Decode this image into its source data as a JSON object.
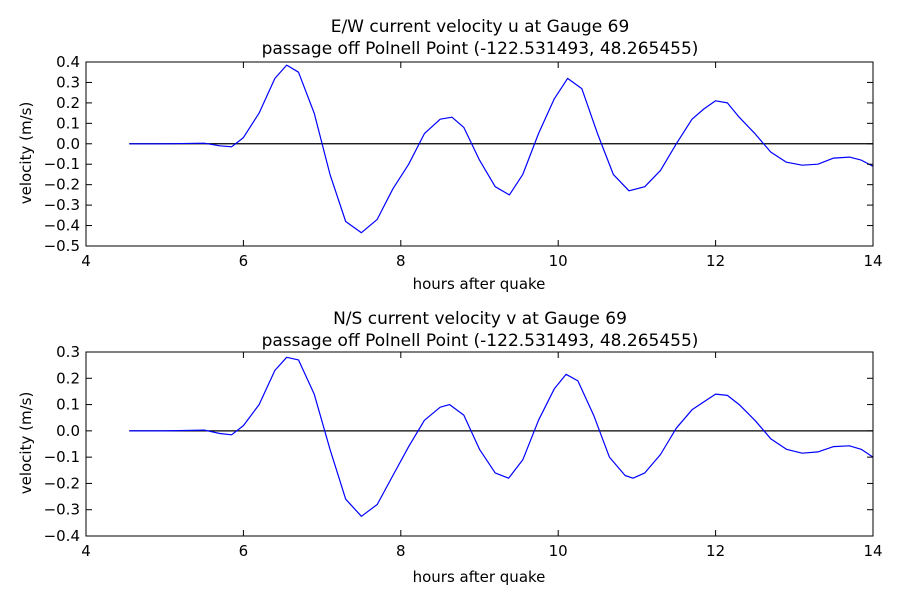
{
  "chart_data": [
    {
      "type": "line",
      "title_line1": "E/W current velocity u at Gauge 69",
      "title_line2": "passage off Polnell Point  (-122.531493, 48.265455)",
      "xlabel": "hours after quake",
      "ylabel": "velocity (m/s)",
      "xlim": [
        4,
        14
      ],
      "ylim": [
        -0.5,
        0.4
      ],
      "xticks": [
        "4",
        "6",
        "8",
        "10",
        "12",
        "14"
      ],
      "yticks": [
        "0.4",
        "0.3",
        "0.2",
        "0.1",
        "0.0",
        "−0.1",
        "−0.2",
        "−0.3",
        "−0.4",
        "−0.5"
      ],
      "ytick_values": [
        0.4,
        0.3,
        0.2,
        0.1,
        0.0,
        -0.1,
        -0.2,
        -0.3,
        -0.4,
        -0.5
      ],
      "grid": false,
      "reference_line": {
        "y": 0,
        "color": "#000000"
      },
      "series": [
        {
          "color": "#0000ff",
          "x": [
            4.55,
            5.0,
            5.5,
            5.7,
            5.85,
            6.0,
            6.2,
            6.4,
            6.55,
            6.7,
            6.9,
            7.1,
            7.3,
            7.5,
            7.7,
            7.9,
            8.1,
            8.3,
            8.5,
            8.65,
            8.8,
            9.0,
            9.2,
            9.38,
            9.55,
            9.75,
            9.95,
            10.12,
            10.3,
            10.5,
            10.7,
            10.9,
            11.1,
            11.3,
            11.5,
            11.7,
            11.85,
            12.0,
            12.15,
            12.3,
            12.5,
            12.7,
            12.9,
            13.1,
            13.3,
            13.5,
            13.7,
            13.85,
            14.0
          ],
          "y": [
            0.0,
            0.0,
            0.003,
            -0.01,
            -0.015,
            0.03,
            0.15,
            0.32,
            0.385,
            0.35,
            0.15,
            -0.15,
            -0.38,
            -0.435,
            -0.37,
            -0.22,
            -0.1,
            0.05,
            0.12,
            0.13,
            0.08,
            -0.08,
            -0.21,
            -0.25,
            -0.15,
            0.05,
            0.22,
            0.32,
            0.27,
            0.05,
            -0.15,
            -0.23,
            -0.21,
            -0.13,
            0.0,
            0.12,
            0.17,
            0.21,
            0.2,
            0.13,
            0.05,
            -0.04,
            -0.09,
            -0.105,
            -0.1,
            -0.07,
            -0.065,
            -0.08,
            -0.11
          ]
        }
      ]
    },
    {
      "type": "line",
      "title_line1": "N/S current velocity v at Gauge 69",
      "title_line2": "passage off Polnell Point  (-122.531493, 48.265455)",
      "xlabel": "hours after quake",
      "ylabel": "velocity (m/s)",
      "xlim": [
        4,
        14
      ],
      "ylim": [
        -0.4,
        0.3
      ],
      "xticks": [
        "4",
        "6",
        "8",
        "10",
        "12",
        "14"
      ],
      "yticks": [
        "0.3",
        "0.2",
        "0.1",
        "0.0",
        "−0.1",
        "−0.2",
        "−0.3",
        "−0.4"
      ],
      "ytick_values": [
        0.3,
        0.2,
        0.1,
        0.0,
        -0.1,
        -0.2,
        -0.3,
        -0.4
      ],
      "grid": false,
      "reference_line": {
        "y": 0,
        "color": "#000000"
      },
      "series": [
        {
          "color": "#0000ff",
          "x": [
            4.55,
            5.0,
            5.5,
            5.7,
            5.85,
            6.0,
            6.2,
            6.4,
            6.55,
            6.7,
            6.9,
            7.1,
            7.3,
            7.5,
            7.7,
            7.9,
            8.1,
            8.3,
            8.5,
            8.62,
            8.8,
            9.0,
            9.2,
            9.37,
            9.55,
            9.75,
            9.95,
            10.1,
            10.25,
            10.45,
            10.65,
            10.85,
            10.95,
            11.1,
            11.3,
            11.5,
            11.7,
            11.85,
            12.0,
            12.15,
            12.3,
            12.5,
            12.7,
            12.9,
            13.1,
            13.3,
            13.5,
            13.7,
            13.85,
            14.0
          ],
          "y": [
            0.0,
            0.0,
            0.003,
            -0.01,
            -0.015,
            0.02,
            0.1,
            0.23,
            0.28,
            0.27,
            0.14,
            -0.07,
            -0.26,
            -0.325,
            -0.28,
            -0.17,
            -0.06,
            0.04,
            0.09,
            0.1,
            0.06,
            -0.07,
            -0.16,
            -0.18,
            -0.11,
            0.04,
            0.16,
            0.215,
            0.19,
            0.06,
            -0.1,
            -0.17,
            -0.18,
            -0.16,
            -0.09,
            0.01,
            0.08,
            0.11,
            0.14,
            0.135,
            0.1,
            0.04,
            -0.03,
            -0.07,
            -0.085,
            -0.08,
            -0.06,
            -0.057,
            -0.07,
            -0.1
          ]
        }
      ]
    }
  ]
}
